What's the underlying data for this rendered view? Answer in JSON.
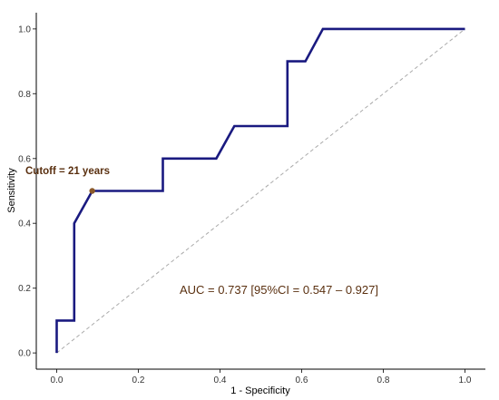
{
  "chart_data": {
    "type": "line",
    "xlabel": "1 - Specificity",
    "ylabel": "Sensitivity",
    "xlim": [
      -0.05,
      1.05
    ],
    "ylim": [
      -0.05,
      1.05
    ],
    "x_ticks": [
      "0.0",
      "0.2",
      "0.4",
      "0.6",
      "0.8",
      "1.0"
    ],
    "y_ticks": [
      "0.0",
      "0.2",
      "0.4",
      "0.6",
      "0.8",
      "1.0"
    ],
    "grid": false,
    "legend": "none",
    "series": [
      {
        "style": "solid",
        "color": "#1a1a80",
        "x": [
          0.0,
          0.0,
          0.043,
          0.043,
          0.087,
          0.087,
          0.26,
          0.26,
          0.391,
          0.435,
          0.565,
          0.565,
          0.609,
          0.652,
          0.652,
          1.0
        ],
        "y": [
          0.0,
          0.1,
          0.1,
          0.4,
          0.5,
          0.5,
          0.5,
          0.6,
          0.6,
          0.7,
          0.7,
          0.9,
          0.9,
          1.0,
          1.0,
          1.0
        ]
      },
      {
        "style": "dashed",
        "color": "#aaaaaa",
        "x": [
          0.0,
          1.0
        ],
        "y": [
          0.0,
          1.0
        ]
      }
    ],
    "annotations": {
      "cutoff": {
        "x": 0.087,
        "y": 0.5,
        "text": "Cutoff = 21 years",
        "point_color": "#8b5a2b"
      },
      "auc": {
        "text": "AUC = 0.737 [95%CI = 0.547 – 0.927]"
      }
    }
  }
}
